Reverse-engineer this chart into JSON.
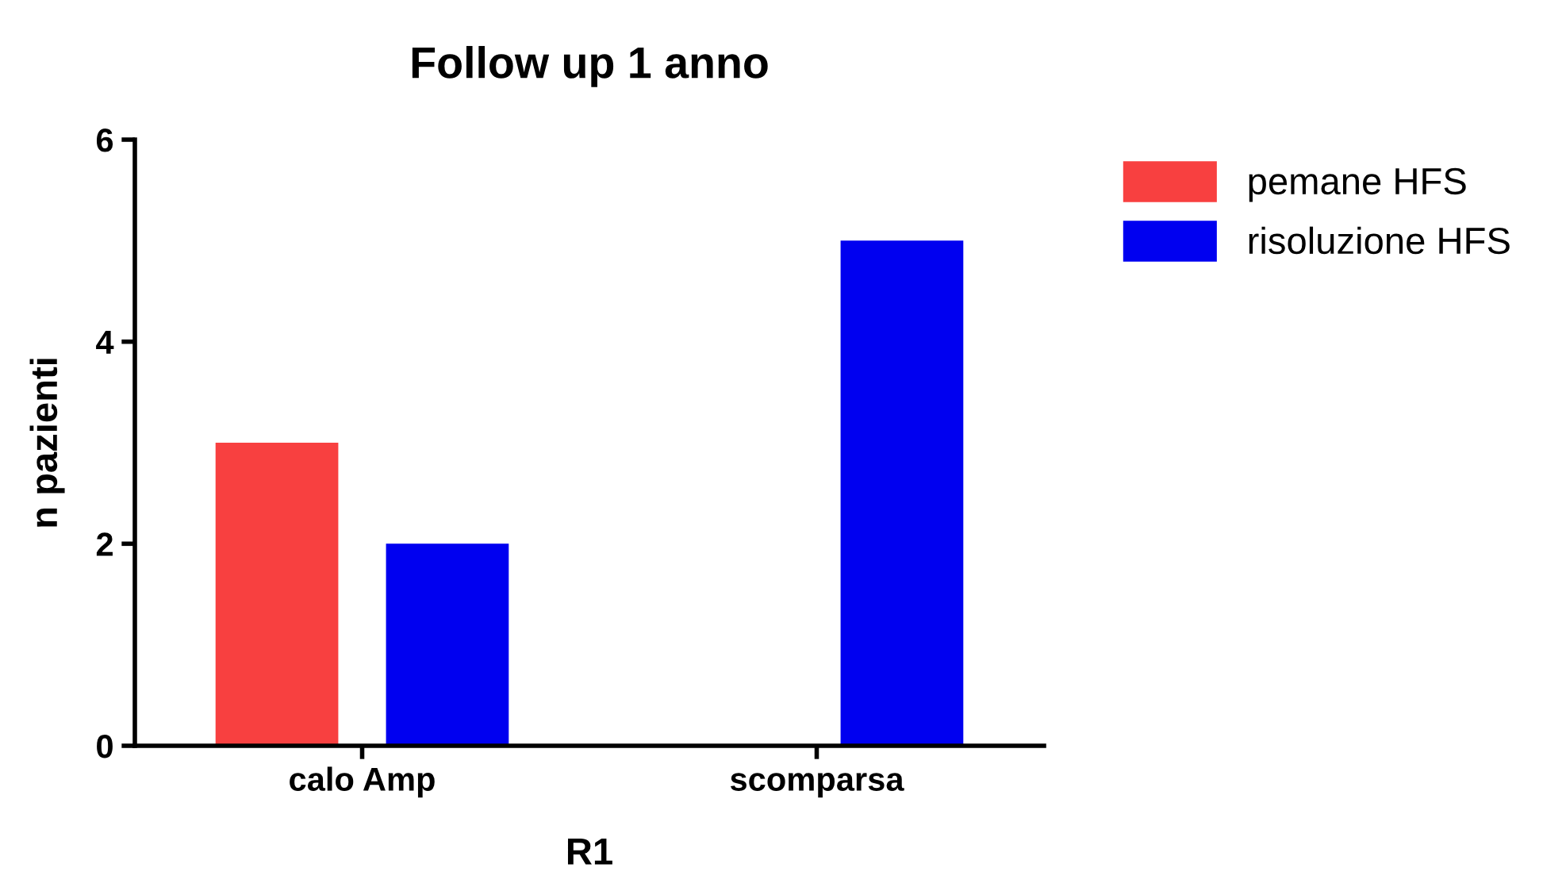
{
  "chart_data": {
    "type": "bar",
    "title": "Follow up 1 anno",
    "xlabel": "R1",
    "ylabel": "n pazienti",
    "categories": [
      "calo Amp",
      "scomparsa"
    ],
    "series": [
      {
        "name": "pemane HFS",
        "color": "#f84040",
        "values": [
          3,
          0
        ]
      },
      {
        "name": "risoluzione HFS",
        "color": "#0000f0",
        "values": [
          2,
          5
        ]
      }
    ],
    "ylim": [
      0,
      6
    ],
    "yticks": [
      0,
      2,
      4,
      6
    ],
    "grid": false,
    "legend": "top right"
  }
}
